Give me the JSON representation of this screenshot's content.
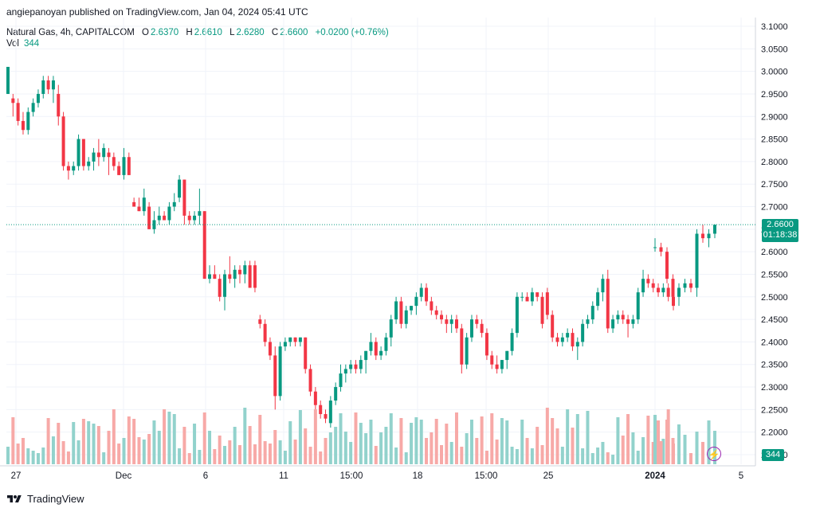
{
  "header": {
    "published": "angiepanoyan published on TradingView.com, Jan 04, 2024 05:41 UTC"
  },
  "legend": {
    "symbol": "Natural Gas, 4h, CAPITALCOM",
    "o_label": "O",
    "o": "2.6370",
    "h_label": "H",
    "h": "2.6610",
    "l_label": "L",
    "l": "2.6280",
    "c_label": "C",
    "c": "2.6600",
    "change": "+0.0200 (+0.76%)",
    "vol_label": "Vol",
    "vol": "344"
  },
  "price_tag": {
    "price": "2.6600",
    "countdown": "01:18:38"
  },
  "vol_tag": "344",
  "footer": {
    "brand": "TradingView"
  },
  "colors": {
    "up": "#089981",
    "down": "#f23645",
    "up_vol": "#92d2cc",
    "down_vol": "#f7a9a7",
    "grid": "#f0f3fa"
  },
  "icons": {
    "flash": "lightning-icon",
    "logo": "tradingview-logo-icon"
  },
  "chart_data": {
    "type": "candlestick",
    "y_ticks": [
      "3.1000",
      "3.0500",
      "3.0000",
      "2.9500",
      "2.9000",
      "2.8500",
      "2.8000",
      "2.7500",
      "2.7000",
      "2.6500",
      "2.6000",
      "2.5500",
      "2.5000",
      "2.4500",
      "2.4000",
      "2.3500",
      "2.3000",
      "2.2500",
      "2.2000",
      "2.1500"
    ],
    "ylim": [
      2.15,
      3.1
    ],
    "x_ticks": [
      "27",
      "Dec",
      "6",
      "11",
      "15:00",
      "18",
      "15:00",
      "25",
      "2024",
      "5"
    ],
    "last_price": 2.66,
    "candles": [
      [
        2.95,
        3.01,
        2.95,
        3.01
      ],
      [
        2.94,
        2.95,
        2.9,
        2.93
      ],
      [
        2.93,
        2.94,
        2.88,
        2.89
      ],
      [
        2.89,
        2.91,
        2.86,
        2.87
      ],
      [
        2.87,
        2.92,
        2.86,
        2.91
      ],
      [
        2.91,
        2.94,
        2.9,
        2.93
      ],
      [
        2.93,
        2.96,
        2.92,
        2.95
      ],
      [
        2.95,
        2.99,
        2.94,
        2.98
      ],
      [
        2.98,
        2.99,
        2.95,
        2.96
      ],
      [
        2.96,
        2.99,
        2.93,
        2.98
      ],
      [
        2.95,
        2.97,
        2.88,
        2.9
      ],
      [
        2.9,
        2.91,
        2.78,
        2.79
      ],
      [
        2.79,
        2.8,
        2.76,
        2.78
      ],
      [
        2.78,
        2.8,
        2.77,
        2.79
      ],
      [
        2.79,
        2.86,
        2.78,
        2.85
      ],
      [
        2.85,
        2.85,
        2.78,
        2.79
      ],
      [
        2.79,
        2.81,
        2.78,
        2.8
      ],
      [
        2.8,
        2.83,
        2.78,
        2.82
      ],
      [
        2.82,
        2.85,
        2.79,
        2.81
      ],
      [
        2.81,
        2.84,
        2.8,
        2.83
      ],
      [
        2.82,
        2.83,
        2.77,
        2.81
      ],
      [
        2.81,
        2.82,
        2.78,
        2.79
      ],
      [
        2.79,
        2.8,
        2.77,
        2.77
      ],
      [
        2.77,
        2.83,
        2.76,
        2.81
      ],
      [
        2.81,
        2.82,
        2.77,
        2.77
      ],
      [
        2.71,
        2.72,
        2.7,
        2.7
      ],
      [
        2.7,
        2.72,
        2.69,
        2.69
      ],
      [
        2.69,
        2.74,
        2.68,
        2.72
      ],
      [
        2.7,
        2.71,
        2.65,
        2.65
      ],
      [
        2.65,
        2.69,
        2.64,
        2.67
      ],
      [
        2.67,
        2.7,
        2.66,
        2.68
      ],
      [
        2.68,
        2.69,
        2.67,
        2.67
      ],
      [
        2.67,
        2.71,
        2.66,
        2.7
      ],
      [
        2.7,
        2.73,
        2.69,
        2.71
      ],
      [
        2.72,
        2.77,
        2.71,
        2.76
      ],
      [
        2.76,
        2.76,
        2.66,
        2.68
      ],
      [
        2.68,
        2.69,
        2.66,
        2.67
      ],
      [
        2.67,
        2.69,
        2.66,
        2.68
      ],
      [
        2.68,
        2.74,
        2.66,
        2.69
      ],
      [
        2.69,
        2.69,
        2.54,
        2.54
      ],
      [
        2.54,
        2.57,
        2.53,
        2.55
      ],
      [
        2.55,
        2.57,
        2.54,
        2.54
      ],
      [
        2.54,
        2.55,
        2.49,
        2.5
      ],
      [
        2.5,
        2.56,
        2.47,
        2.55
      ],
      [
        2.55,
        2.59,
        2.53,
        2.54
      ],
      [
        2.54,
        2.57,
        2.52,
        2.56
      ],
      [
        2.56,
        2.57,
        2.53,
        2.55
      ],
      [
        2.55,
        2.58,
        2.53,
        2.57
      ],
      [
        2.57,
        2.58,
        2.52,
        2.52
      ],
      [
        2.57,
        2.58,
        2.51,
        2.52
      ],
      [
        2.45,
        2.46,
        2.43,
        2.44
      ],
      [
        2.44,
        2.45,
        2.39,
        2.4
      ],
      [
        2.4,
        2.41,
        2.36,
        2.37
      ],
      [
        2.37,
        2.39,
        2.25,
        2.28
      ],
      [
        2.28,
        2.4,
        2.27,
        2.39
      ],
      [
        2.39,
        2.41,
        2.38,
        2.4
      ],
      [
        2.4,
        2.41,
        2.39,
        2.41
      ],
      [
        2.41,
        2.41,
        2.39,
        2.4
      ],
      [
        2.4,
        2.41,
        2.39,
        2.41
      ],
      [
        2.41,
        2.41,
        2.33,
        2.34
      ],
      [
        2.34,
        2.35,
        2.28,
        2.29
      ],
      [
        2.29,
        2.3,
        2.24,
        2.26
      ],
      [
        2.26,
        2.27,
        2.23,
        2.24
      ],
      [
        2.24,
        2.25,
        2.22,
        2.23
      ],
      [
        2.22,
        2.28,
        2.21,
        2.27
      ],
      [
        2.27,
        2.31,
        2.26,
        2.3
      ],
      [
        2.3,
        2.35,
        2.29,
        2.33
      ],
      [
        2.33,
        2.35,
        2.31,
        2.34
      ],
      [
        2.34,
        2.36,
        2.33,
        2.35
      ],
      [
        2.35,
        2.36,
        2.33,
        2.34
      ],
      [
        2.34,
        2.37,
        2.33,
        2.36
      ],
      [
        2.36,
        2.38,
        2.33,
        2.38
      ],
      [
        2.38,
        2.42,
        2.37,
        2.4
      ],
      [
        2.4,
        2.41,
        2.36,
        2.37
      ],
      [
        2.37,
        2.39,
        2.36,
        2.38
      ],
      [
        2.38,
        2.42,
        2.37,
        2.41
      ],
      [
        2.41,
        2.46,
        2.39,
        2.45
      ],
      [
        2.45,
        2.5,
        2.44,
        2.49
      ],
      [
        2.49,
        2.5,
        2.43,
        2.44
      ],
      [
        2.44,
        2.48,
        2.43,
        2.47
      ],
      [
        2.47,
        2.48,
        2.46,
        2.48
      ],
      [
        2.48,
        2.51,
        2.46,
        2.5
      ],
      [
        2.5,
        2.53,
        2.49,
        2.52
      ],
      [
        2.52,
        2.53,
        2.48,
        2.49
      ],
      [
        2.49,
        2.5,
        2.46,
        2.47
      ],
      [
        2.47,
        2.48,
        2.45,
        2.46
      ],
      [
        2.46,
        2.47,
        2.44,
        2.45
      ],
      [
        2.45,
        2.46,
        2.42,
        2.44
      ],
      [
        2.44,
        2.46,
        2.42,
        2.45
      ],
      [
        2.45,
        2.46,
        2.42,
        2.43
      ],
      [
        2.43,
        2.44,
        2.33,
        2.35
      ],
      [
        2.35,
        2.42,
        2.34,
        2.41
      ],
      [
        2.41,
        2.46,
        2.4,
        2.45
      ],
      [
        2.45,
        2.46,
        2.43,
        2.44
      ],
      [
        2.44,
        2.45,
        2.41,
        2.42
      ],
      [
        2.42,
        2.43,
        2.36,
        2.37
      ],
      [
        2.37,
        2.38,
        2.34,
        2.35
      ],
      [
        2.35,
        2.37,
        2.33,
        2.34
      ],
      [
        2.34,
        2.36,
        2.33,
        2.36
      ],
      [
        2.36,
        2.38,
        2.34,
        2.38
      ],
      [
        2.38,
        2.43,
        2.37,
        2.42
      ],
      [
        2.42,
        2.51,
        2.41,
        2.5
      ],
      [
        2.5,
        2.51,
        2.49,
        2.5
      ],
      [
        2.5,
        2.51,
        2.49,
        2.49
      ],
      [
        2.49,
        2.52,
        2.48,
        2.51
      ],
      [
        2.51,
        2.51,
        2.49,
        2.5
      ],
      [
        2.5,
        2.51,
        2.43,
        2.44
      ],
      [
        2.51,
        2.52,
        2.45,
        2.46
      ],
      [
        2.46,
        2.47,
        2.4,
        2.41
      ],
      [
        2.41,
        2.42,
        2.39,
        2.4
      ],
      [
        2.4,
        2.42,
        2.39,
        2.41
      ],
      [
        2.41,
        2.43,
        2.4,
        2.42
      ],
      [
        2.42,
        2.43,
        2.38,
        2.39
      ],
      [
        2.39,
        2.41,
        2.36,
        2.4
      ],
      [
        2.4,
        2.45,
        2.39,
        2.44
      ],
      [
        2.44,
        2.46,
        2.43,
        2.45
      ],
      [
        2.45,
        2.49,
        2.44,
        2.48
      ],
      [
        2.48,
        2.52,
        2.47,
        2.51
      ],
      [
        2.51,
        2.55,
        2.49,
        2.54
      ],
      [
        2.54,
        2.56,
        2.42,
        2.43
      ],
      [
        2.43,
        2.46,
        2.42,
        2.45
      ],
      [
        2.45,
        2.47,
        2.44,
        2.46
      ],
      [
        2.46,
        2.47,
        2.44,
        2.45
      ],
      [
        2.45,
        2.46,
        2.41,
        2.44
      ],
      [
        2.44,
        2.46,
        2.43,
        2.45
      ],
      [
        2.45,
        2.52,
        2.44,
        2.51
      ],
      [
        2.51,
        2.56,
        2.5,
        2.54
      ],
      [
        2.54,
        2.55,
        2.52,
        2.53
      ],
      [
        2.53,
        2.54,
        2.51,
        2.52
      ],
      [
        2.52,
        2.53,
        2.5,
        2.51
      ],
      [
        2.51,
        2.53,
        2.5,
        2.52
      ],
      [
        2.52,
        2.53,
        2.49,
        2.5
      ],
      [
        2.5,
        2.51,
        2.47,
        2.48
      ]
    ],
    "candles_tail": [
      [
        2.61,
        2.63,
        2.6,
        2.61
      ],
      [
        2.61,
        2.62,
        2.59,
        2.6
      ],
      [
        2.6,
        2.61,
        2.53,
        2.54
      ],
      [
        2.54,
        2.55,
        2.49,
        2.5
      ],
      [
        2.5,
        2.53,
        2.48,
        2.52
      ],
      [
        2.52,
        2.54,
        2.51,
        2.53
      ],
      [
        2.53,
        2.54,
        2.51,
        2.52
      ],
      [
        2.52,
        2.65,
        2.5,
        2.64
      ],
      [
        2.64,
        2.66,
        2.62,
        2.63
      ],
      [
        2.63,
        2.65,
        2.61,
        2.64
      ],
      [
        2.64,
        2.66,
        2.63,
        2.66
      ]
    ]
  }
}
